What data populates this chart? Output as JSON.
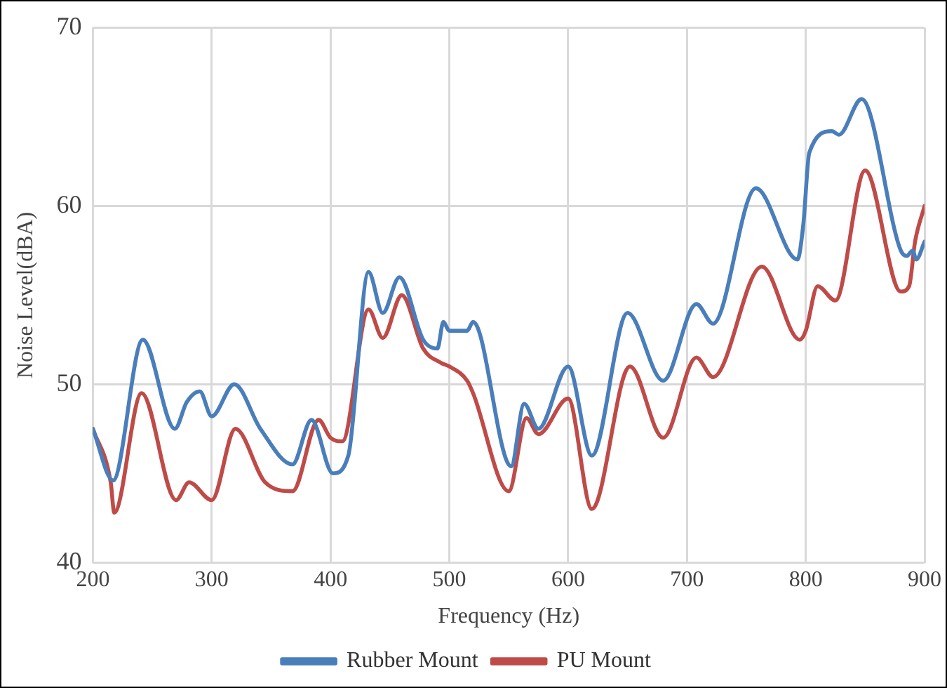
{
  "chart_data": {
    "type": "line",
    "xlabel": "Frequency (Hz)",
    "ylabel": "Noise Level(dBA)",
    "xlim": [
      200,
      900
    ],
    "xticks": [
      200,
      300,
      400,
      500,
      600,
      700,
      800,
      900
    ],
    "ylim": [
      40,
      70
    ],
    "yticks": [
      40,
      50,
      60,
      70
    ],
    "grid": true,
    "legend": "bottom",
    "marker": "none",
    "line_style": "solid",
    "series": [
      {
        "name": "Rubber Mount",
        "color": "#4a7ebb",
        "x": [
          200,
          217,
          242,
          269,
          279,
          290,
          300,
          319,
          341,
          368,
          384,
          402,
          415,
          432,
          444,
          458,
          478,
          490,
          495,
          500,
          515,
          520,
          552,
          563,
          575,
          600,
          620,
          650,
          680,
          708,
          722,
          758,
          793,
          798,
          803,
          822,
          828,
          847,
          880,
          885,
          890,
          893,
          900
        ],
        "values": [
          47.5,
          44.6,
          52.5,
          47.5,
          49,
          49.6,
          48.2,
          50,
          47.5,
          45.5,
          48,
          45,
          46,
          56.3,
          54,
          56,
          52.5,
          52,
          53.5,
          53,
          53,
          53.5,
          45.4,
          48.9,
          47.5,
          51,
          46,
          54,
          50.2,
          54.5,
          53.4,
          61,
          57,
          59,
          63,
          64.2,
          64,
          66,
          57.5,
          57.2,
          57.5,
          57,
          58
        ]
      },
      {
        "name": "PU Mount",
        "color": "#be4b48",
        "x": [
          200,
          215,
          218,
          241,
          270,
          281,
          300,
          320,
          345,
          368,
          390,
          400,
          410,
          432,
          444,
          460,
          478,
          493,
          500,
          515,
          520,
          550,
          565,
          575,
          600,
          620,
          652,
          680,
          708,
          722,
          763,
          795,
          800,
          810,
          825,
          850,
          880,
          887,
          892,
          900
        ],
        "values": [
          47.5,
          44.5,
          42.8,
          49.5,
          43.5,
          44.5,
          43.5,
          47.5,
          44.5,
          44,
          48,
          47,
          46.8,
          54.2,
          52.6,
          55,
          52,
          51.2,
          51,
          50.2,
          49.5,
          44,
          48.1,
          47.2,
          49.2,
          43,
          51,
          47,
          51.5,
          50.4,
          56.6,
          52.5,
          53,
          55.5,
          54.7,
          62,
          55.2,
          55.5,
          58,
          60
        ]
      }
    ]
  }
}
